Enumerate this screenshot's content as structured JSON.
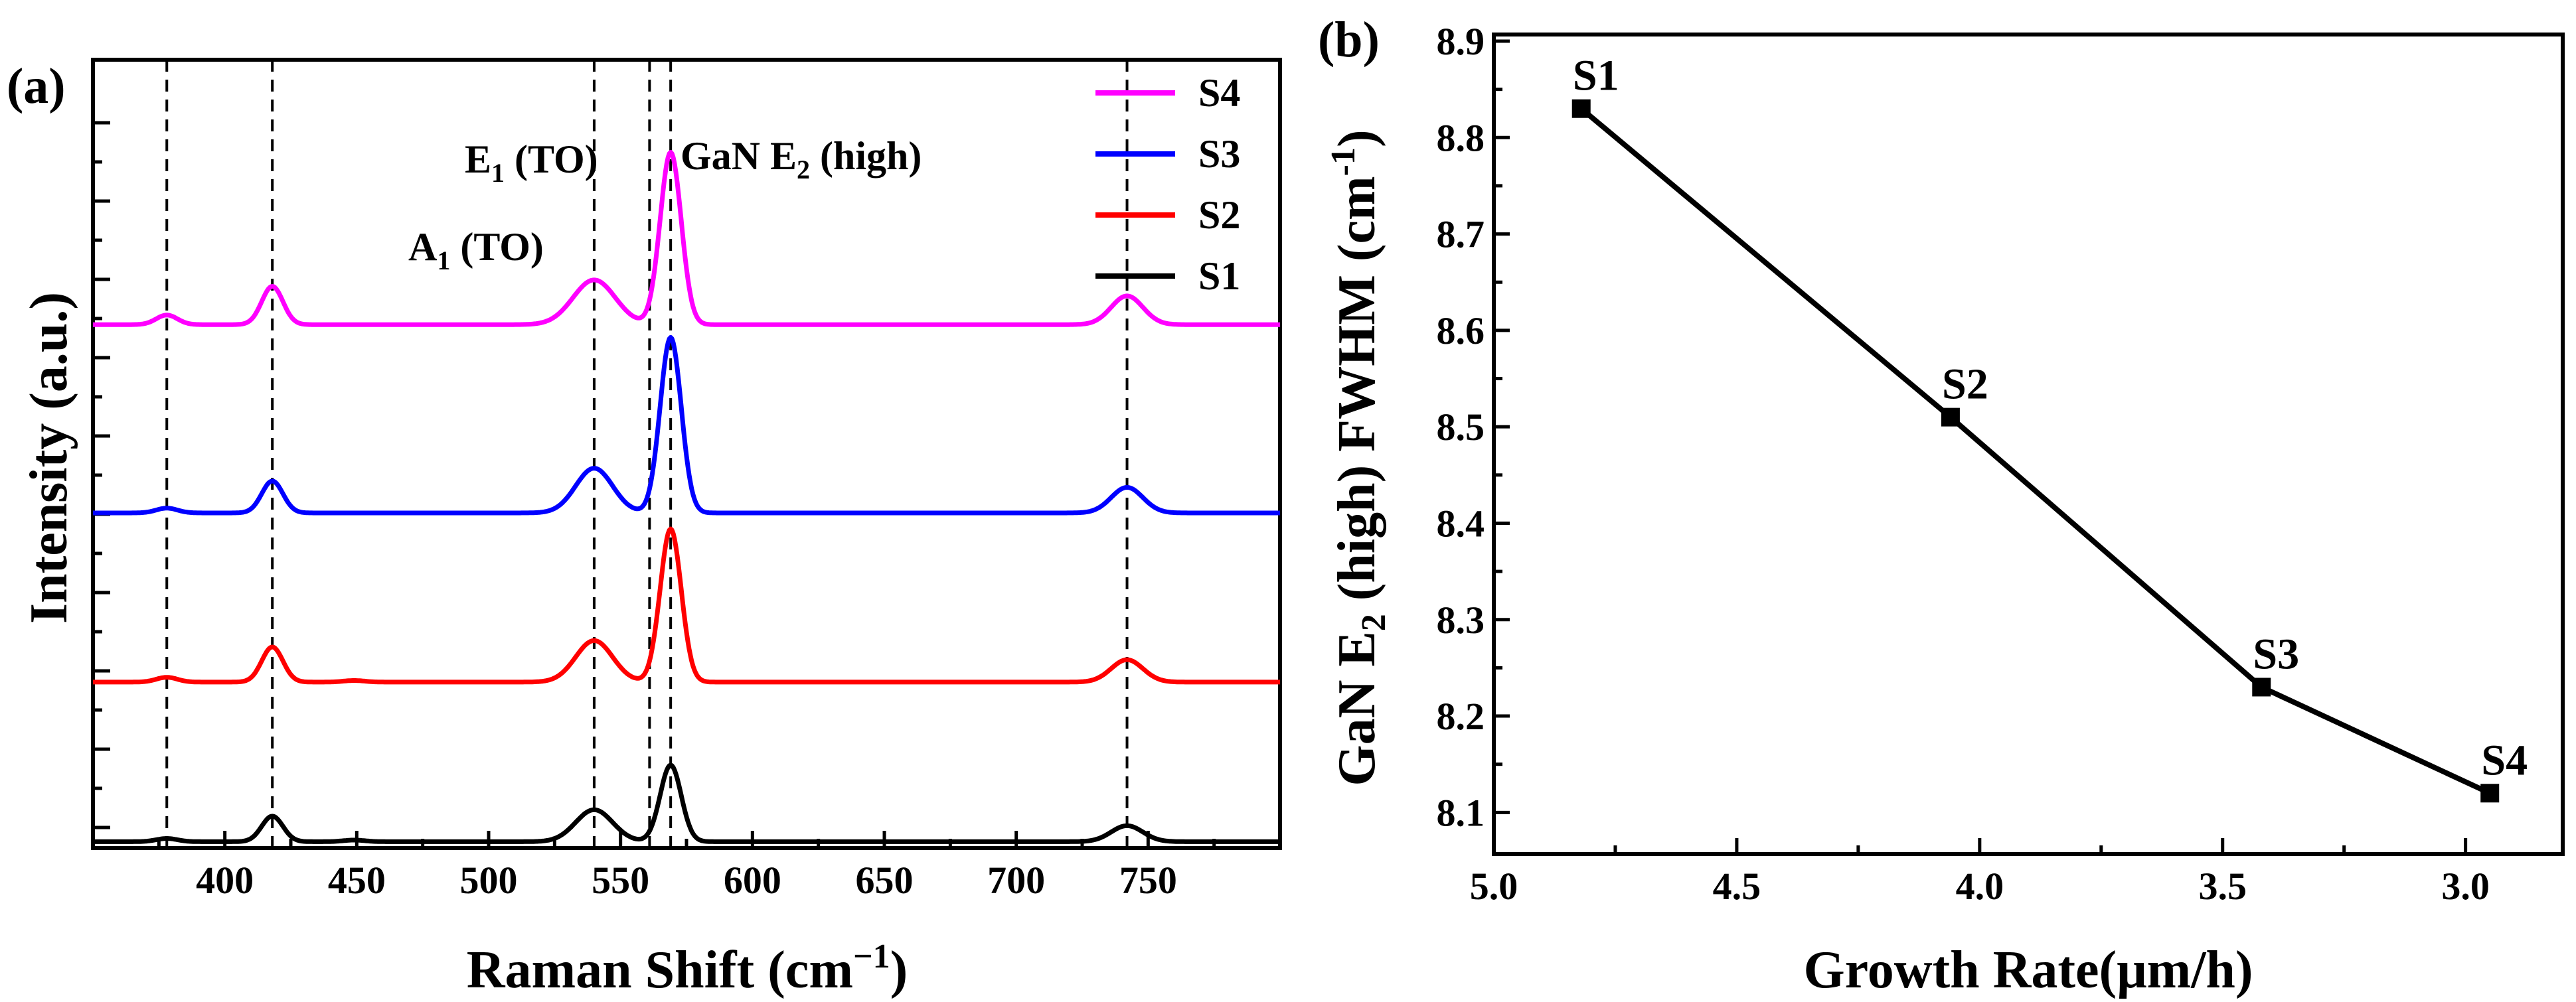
{
  "colors": {
    "S1": "#000000",
    "S2": "#ff0000",
    "S3": "#0000ff",
    "S4": "#ff00ff"
  },
  "chart_data": [
    {
      "panel_label": "(a)",
      "type": "line",
      "xlabel": "Raman Shift (cm",
      "xlabel_sup": "−1",
      "xlabel_end": ")",
      "ylabel": "Intensity (a.u.)",
      "xlim": [
        350,
        800
      ],
      "xticks": [
        400,
        450,
        500,
        550,
        600,
        650,
        700,
        750
      ],
      "peak_lines": [
        378,
        418,
        540,
        561,
        569,
        742
      ],
      "annotations": {
        "e1": {
          "main": "E",
          "sub": "1",
          "rest": " (TO)"
        },
        "gan": {
          "main": "GaN E",
          "sub": "2",
          "rest": " (high)"
        },
        "a1": {
          "main": "A",
          "sub": "1",
          "rest": " (TO)"
        }
      },
      "legend": [
        "S4",
        "S3",
        "S2",
        "S1"
      ],
      "series": [
        {
          "name": "S1",
          "baseline": 0.0,
          "peaks": [
            [
              378,
              0.01,
              4
            ],
            [
              418,
              0.08,
              4
            ],
            [
              449,
              0.005,
              4
            ],
            [
              540,
              0.1,
              7
            ],
            [
              569,
              0.24,
              4
            ],
            [
              742,
              0.05,
              6
            ]
          ]
        },
        {
          "name": "S2",
          "baseline": 0.5,
          "peaks": [
            [
              378,
              0.015,
              4
            ],
            [
              418,
              0.11,
              4
            ],
            [
              449,
              0.005,
              4
            ],
            [
              540,
              0.13,
              7
            ],
            [
              569,
              0.48,
              4
            ],
            [
              742,
              0.07,
              6
            ]
          ]
        },
        {
          "name": "S3",
          "baseline": 1.03,
          "peaks": [
            [
              378,
              0.015,
              4
            ],
            [
              418,
              0.1,
              4
            ],
            [
              540,
              0.14,
              7
            ],
            [
              569,
              0.55,
              4
            ],
            [
              742,
              0.08,
              6
            ]
          ]
        },
        {
          "name": "S4",
          "baseline": 1.62,
          "peaks": [
            [
              378,
              0.03,
              4
            ],
            [
              418,
              0.12,
              4
            ],
            [
              540,
              0.14,
              8
            ],
            [
              569,
              0.54,
              4
            ],
            [
              742,
              0.09,
              6
            ]
          ]
        }
      ]
    },
    {
      "panel_label": "(b)",
      "type": "line",
      "xlabel": "Growth Rate(μm/h)",
      "ylabel_main": "GaN E",
      "ylabel_sub": "2",
      "ylabel_mid": " (high) FWHM (cm",
      "ylabel_sup": "-1",
      "ylabel_end": ")",
      "xlim": [
        5.0,
        2.8
      ],
      "ylim": [
        8.05,
        8.9
      ],
      "xticks": [
        "5.0",
        "4.5",
        "4.0",
        "3.5",
        "3.0"
      ],
      "yticks": [
        "8.1",
        "8.2",
        "8.3",
        "8.4",
        "8.5",
        "8.6",
        "8.7",
        "8.8",
        "8.9"
      ],
      "points": [
        {
          "name": "S1",
          "x": 4.82,
          "y": 8.83
        },
        {
          "name": "S2",
          "x": 4.06,
          "y": 8.51
        },
        {
          "name": "S3",
          "x": 3.42,
          "y": 8.23
        },
        {
          "name": "S4",
          "x": 2.95,
          "y": 8.12
        }
      ]
    }
  ]
}
